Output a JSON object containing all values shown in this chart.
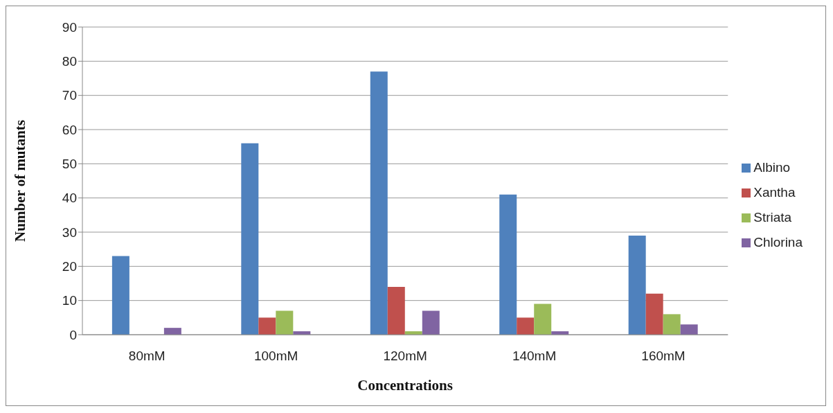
{
  "chart_data": {
    "type": "bar",
    "xlabel": "Concentrations",
    "ylabel": "Number of  mutants",
    "categories": [
      "80mM",
      "100mM",
      "120mM",
      "140mM",
      "160mM"
    ],
    "series": [
      {
        "name": "Albino",
        "color": "#4f81bd",
        "values": [
          23,
          56,
          77,
          41,
          29
        ]
      },
      {
        "name": "Xantha",
        "color": "#c0504d",
        "values": [
          0,
          5,
          14,
          5,
          12
        ]
      },
      {
        "name": "Striata",
        "color": "#9bbb59",
        "values": [
          0,
          7,
          1,
          9,
          6
        ]
      },
      {
        "name": "Chlorina",
        "color": "#8064a2",
        "values": [
          2,
          1,
          7,
          1,
          3
        ]
      }
    ],
    "ylim": [
      0,
      90
    ],
    "yticks": [
      0,
      10,
      20,
      30,
      40,
      50,
      60,
      70,
      80,
      90
    ],
    "grid": "y",
    "legend": "right"
  }
}
